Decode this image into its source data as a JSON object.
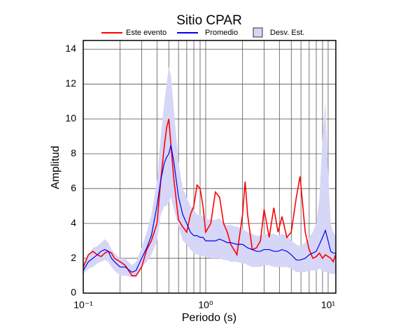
{
  "chart_data": {
    "type": "line",
    "title": "Sitio CPAR",
    "x_label": "Periodo (s)",
    "y_label": "Amplitud",
    "log_x": true,
    "grid": true,
    "xlim": [
      0.1,
      11.56
    ],
    "ylim": [
      0,
      14.5
    ],
    "xticks": [
      {
        "value": 0.1,
        "label": "10⁻¹"
      },
      {
        "value": 1,
        "label": "10⁰"
      },
      {
        "value": 10,
        "label": "10¹"
      }
    ],
    "x_minor_ticks": [
      0.2,
      0.3,
      0.4,
      0.5,
      0.6,
      0.7,
      0.8,
      0.9,
      2,
      3,
      4,
      5,
      6,
      7,
      8,
      9
    ],
    "yticks": [
      0,
      2,
      4,
      6,
      8,
      10,
      12,
      14
    ],
    "x": [
      0.1,
      0.11,
      0.12,
      0.13,
      0.14,
      0.15,
      0.16,
      0.17,
      0.18,
      0.2,
      0.22,
      0.25,
      0.27,
      0.3,
      0.33,
      0.36,
      0.4,
      0.43,
      0.46,
      0.48,
      0.5,
      0.52,
      0.55,
      0.6,
      0.65,
      0.7,
      0.75,
      0.8,
      0.85,
      0.9,
      0.95,
      1.0,
      1.1,
      1.2,
      1.3,
      1.4,
      1.5,
      1.6,
      1.8,
      2.0,
      2.1,
      2.2,
      2.4,
      2.6,
      2.8,
      3.0,
      3.3,
      3.6,
      3.9,
      4.2,
      4.6,
      5.0,
      5.5,
      5.9,
      6.5,
      7,
      7.5,
      8,
      8.5,
      9,
      9.5,
      10,
      10.5,
      11,
      11.5
    ],
    "band": {
      "name": "Desv. Est.",
      "color": "#d6d6f7",
      "upper": [
        1.5,
        2.2,
        2.6,
        2.7,
        2.9,
        3.1,
        2.9,
        2.5,
        2.3,
        2.0,
        2.0,
        1.6,
        1.8,
        2.6,
        3.5,
        4.5,
        6.5,
        9.0,
        11.0,
        12.0,
        13.0,
        12.5,
        10.5,
        7.5,
        6.0,
        5.5,
        5.0,
        4.8,
        4.5,
        4.5,
        4.4,
        4.3,
        4.2,
        4.2,
        4.3,
        4.0,
        3.9,
        3.9,
        3.8,
        3.7,
        3.6,
        3.5,
        3.4,
        3.3,
        3.3,
        3.4,
        3.4,
        3.4,
        3.3,
        3.4,
        3.3,
        3.0,
        2.8,
        2.7,
        2.9,
        3.2,
        3.5,
        4.0,
        5.5,
        9.0,
        11.0,
        7.0,
        4.0,
        3.5,
        3.3
      ],
      "lower": [
        1.1,
        1.4,
        1.5,
        1.7,
        1.8,
        1.9,
        1.8,
        1.5,
        1.3,
        1.0,
        1.0,
        0.9,
        0.9,
        1.5,
        1.8,
        2.2,
        3.0,
        4.5,
        5.0,
        5.0,
        5.2,
        5.5,
        4.8,
        3.8,
        3.0,
        2.8,
        2.5,
        2.3,
        2.2,
        2.2,
        2.1,
        2.1,
        2.0,
        2.0,
        2.0,
        1.9,
        1.9,
        1.8,
        1.8,
        1.7,
        1.7,
        1.6,
        1.5,
        1.5,
        1.5,
        1.6,
        1.6,
        1.5,
        1.5,
        1.5,
        1.5,
        1.4,
        1.2,
        1.2,
        1.2,
        1.3,
        1.3,
        1.3,
        1.4,
        1.3,
        1.2,
        1.2,
        1.1,
        1.1,
        1.1
      ]
    },
    "series": [
      {
        "name": "Este evento",
        "color": "#ff0000",
        "values": [
          1.5,
          2.2,
          2.4,
          2.2,
          2.1,
          2.3,
          2.4,
          2.3,
          2.0,
          1.8,
          1.6,
          1.0,
          1.0,
          1.5,
          2.5,
          3.0,
          4.0,
          6.5,
          8.5,
          9.5,
          10.0,
          8.5,
          6.5,
          4.2,
          3.8,
          3.5,
          4.5,
          5.0,
          6.2,
          6.0,
          5.0,
          3.5,
          4.0,
          5.8,
          5.5,
          4.0,
          3.5,
          2.8,
          2.2,
          4.5,
          6.4,
          4.5,
          2.5,
          2.6,
          3.0,
          4.8,
          3.2,
          4.9,
          3.5,
          4.4,
          3.2,
          3.5,
          5.5,
          6.7,
          3.5,
          2.5,
          2.0,
          2.1,
          2.3,
          2.0,
          2.2,
          2.1,
          2.0,
          1.8,
          2.2
        ]
      },
      {
        "name": "Promedio",
        "color": "#0000ee",
        "values": [
          1.3,
          1.8,
          2.0,
          2.2,
          2.4,
          2.5,
          2.4,
          2.0,
          1.8,
          1.5,
          1.5,
          1.2,
          1.3,
          2.0,
          2.6,
          3.3,
          5.0,
          6.5,
          7.5,
          7.8,
          8.0,
          8.5,
          7.5,
          5.5,
          4.5,
          4.0,
          3.5,
          3.3,
          3.3,
          3.2,
          3.2,
          3.0,
          3.0,
          3.0,
          3.1,
          3.0,
          2.9,
          2.9,
          2.8,
          2.8,
          2.7,
          2.6,
          2.5,
          2.4,
          2.4,
          2.5,
          2.5,
          2.4,
          2.4,
          2.5,
          2.4,
          2.2,
          1.9,
          1.9,
          2.0,
          2.2,
          2.3,
          2.4,
          2.8,
          3.2,
          3.6,
          3.0,
          2.4,
          2.3,
          2.3
        ]
      }
    ]
  }
}
